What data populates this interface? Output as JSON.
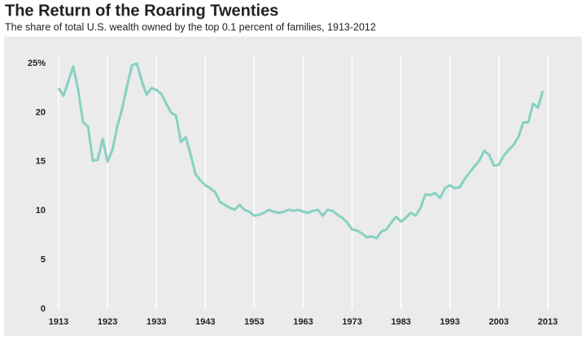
{
  "chart_data": {
    "type": "line",
    "title": "The Return of the Roaring Twenties",
    "subtitle": "The share of total U.S. wealth owned by the top 0.1 percent of families, 1913-2012",
    "x": [
      1913,
      1914,
      1915,
      1916,
      1917,
      1918,
      1919,
      1920,
      1921,
      1922,
      1923,
      1924,
      1925,
      1926,
      1927,
      1928,
      1929,
      1930,
      1931,
      1932,
      1933,
      1934,
      1935,
      1936,
      1937,
      1938,
      1939,
      1940,
      1941,
      1942,
      1943,
      1944,
      1945,
      1946,
      1947,
      1948,
      1949,
      1950,
      1951,
      1952,
      1953,
      1954,
      1955,
      1956,
      1957,
      1958,
      1959,
      1960,
      1961,
      1962,
      1963,
      1964,
      1965,
      1966,
      1967,
      1968,
      1969,
      1970,
      1971,
      1972,
      1973,
      1974,
      1975,
      1976,
      1977,
      1978,
      1979,
      1980,
      1981,
      1982,
      1983,
      1984,
      1985,
      1986,
      1987,
      1988,
      1989,
      1990,
      1991,
      1992,
      1993,
      1994,
      1995,
      1996,
      1997,
      1998,
      1999,
      2000,
      2001,
      2002,
      2003,
      2004,
      2005,
      2006,
      2007,
      2008,
      2009,
      2010,
      2011,
      2012
    ],
    "series": [
      {
        "color": "#86d1c1",
        "values": [
          22.5,
          21.7,
          23.2,
          24.7,
          22.3,
          19.0,
          18.6,
          15.1,
          15.2,
          17.3,
          15.0,
          16.2,
          18.6,
          20.4,
          22.7,
          24.8,
          25.0,
          23.2,
          21.8,
          22.5,
          22.3,
          21.9,
          20.9,
          20.0,
          19.7,
          17.0,
          17.5,
          15.7,
          13.7,
          13.1,
          12.6,
          12.3,
          11.9,
          10.9,
          10.6,
          10.3,
          10.1,
          10.6,
          10.1,
          9.9,
          9.5,
          9.6,
          9.8,
          10.1,
          9.9,
          9.8,
          9.9,
          10.1,
          10.0,
          10.1,
          9.9,
          9.8,
          10.0,
          10.1,
          9.5,
          10.1,
          10.0,
          9.6,
          9.3,
          8.8,
          8.1,
          8.0,
          7.7,
          7.3,
          7.4,
          7.2,
          7.9,
          8.1,
          8.8,
          9.4,
          8.9,
          9.3,
          9.8,
          9.5,
          10.3,
          11.7,
          11.6,
          11.8,
          11.3,
          12.3,
          12.6,
          12.3,
          12.4,
          13.2,
          13.9,
          14.5,
          15.1,
          16.1,
          15.7,
          14.6,
          14.7,
          15.6,
          16.2,
          16.7,
          17.5,
          19.0,
          19.0,
          20.9,
          20.5,
          22.2
        ]
      }
    ],
    "xlim": [
      1912,
      2014
    ],
    "xticks": [
      1913,
      1923,
      1933,
      1943,
      1953,
      1963,
      1973,
      1983,
      1993,
      2003,
      2013
    ],
    "ylim": [
      0,
      25
    ],
    "yticks": [
      0,
      5,
      10,
      15,
      20,
      {
        "value": 25,
        "label": "25%"
      }
    ],
    "grid": true
  }
}
